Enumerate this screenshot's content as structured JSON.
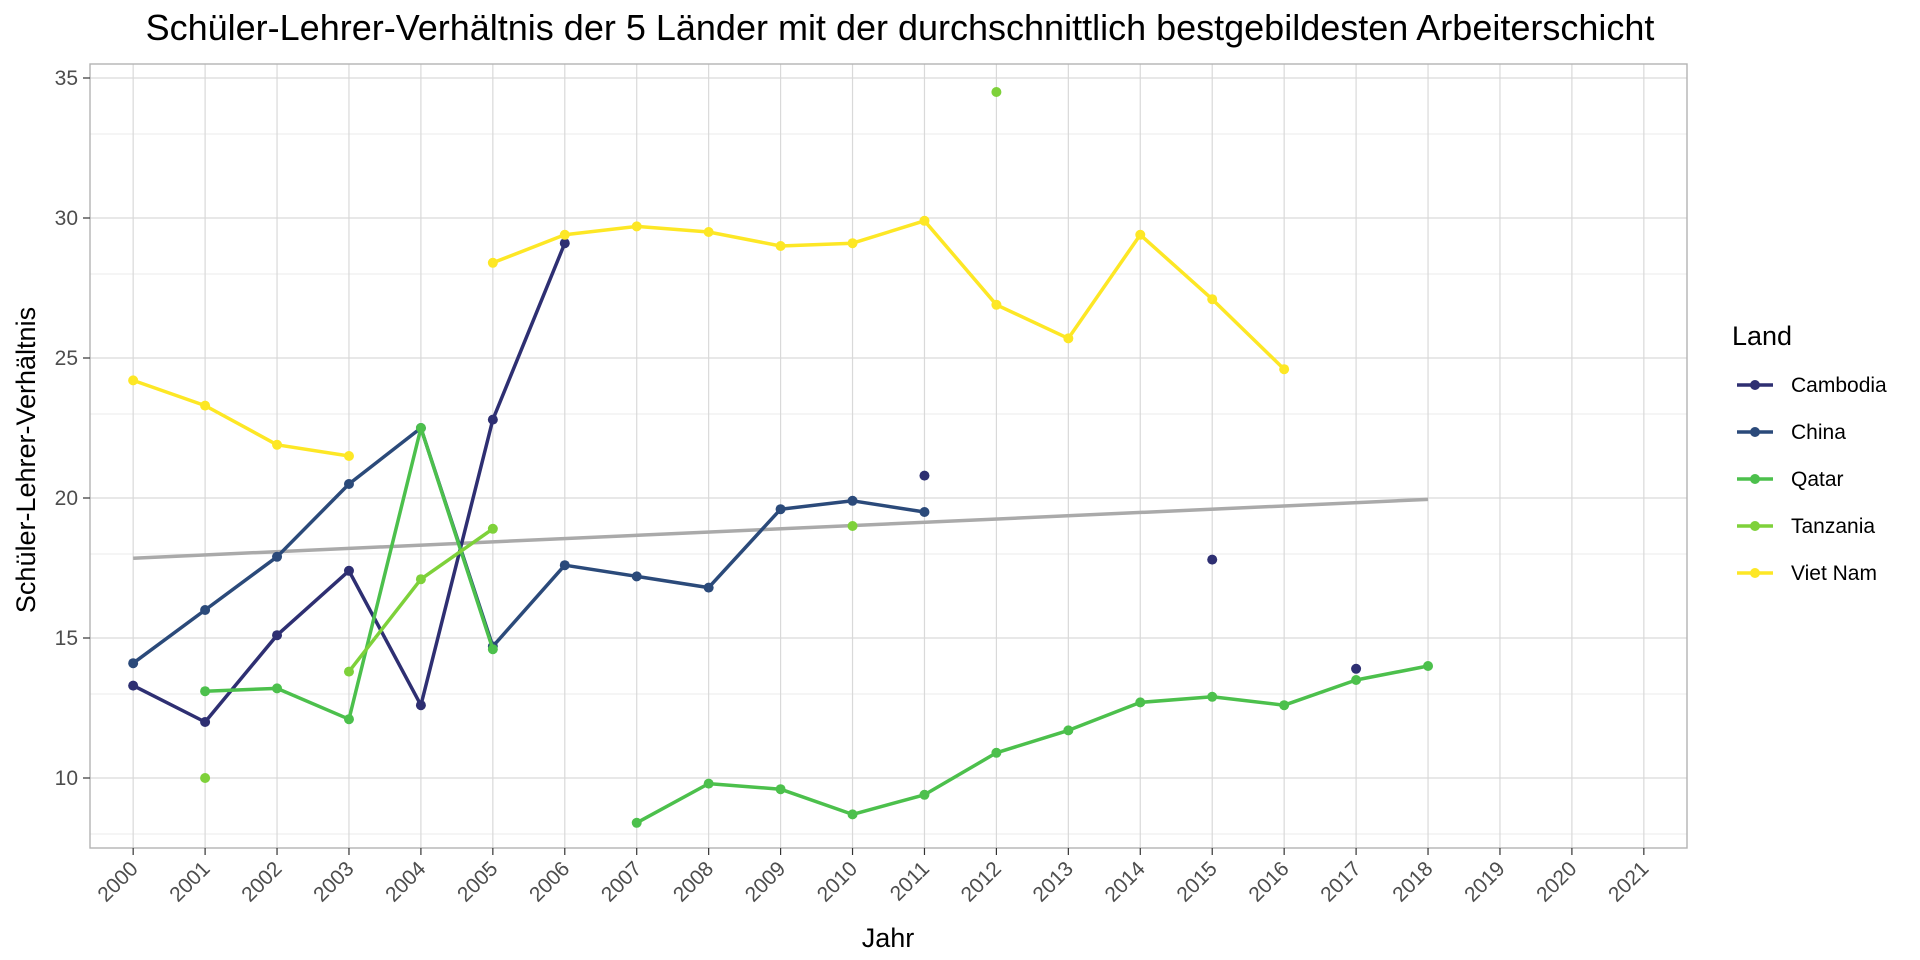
{
  "chart_data": {
    "type": "line",
    "title": "Schüler-Lehrer-Verhältnis der 5 Länder mit der durchschnittlich bestgebildesten Arbeiterschicht",
    "xlabel": "Jahr",
    "ylabel": "Schüler-Lehrer-Verhältnis",
    "x_ticks": [
      "2000",
      "2001",
      "2002",
      "2003",
      "2004",
      "2005",
      "2006",
      "2007",
      "2008",
      "2009",
      "2010",
      "2011",
      "2012",
      "2013",
      "2014",
      "2015",
      "2016",
      "2017",
      "2018",
      "2019",
      "2020",
      "2021"
    ],
    "y_ticks": [
      "10",
      "15",
      "20",
      "25",
      "30",
      "35"
    ],
    "xlim": [
      1999.4,
      2021.6
    ],
    "ylim": [
      7.5,
      35.5
    ],
    "grid": true,
    "legend": {
      "title": "Land",
      "position": "right"
    },
    "series": [
      {
        "name": "Cambodia",
        "color": "#2e2f72",
        "points": [
          [
            2000,
            13.3
          ],
          [
            2001,
            12.0
          ],
          [
            2002,
            15.1
          ],
          [
            2003,
            17.4
          ],
          [
            2004,
            12.6
          ],
          [
            2005,
            22.8
          ],
          [
            2006,
            29.1
          ],
          [
            2011,
            20.8
          ],
          [
            2015,
            17.8
          ],
          [
            2017,
            13.9
          ]
        ]
      },
      {
        "name": "China",
        "color": "#2b4a7a",
        "points": [
          [
            2000,
            14.1
          ],
          [
            2001,
            16.0
          ],
          [
            2002,
            17.9
          ],
          [
            2003,
            20.5
          ],
          [
            2004,
            22.5
          ],
          [
            2005,
            14.7
          ],
          [
            2006,
            17.6
          ],
          [
            2007,
            17.2
          ],
          [
            2008,
            16.8
          ],
          [
            2009,
            19.6
          ],
          [
            2010,
            19.9
          ],
          [
            2011,
            19.5
          ]
        ]
      },
      {
        "name": "Qatar",
        "color": "#4cc04c",
        "points": [
          [
            2001,
            13.1
          ],
          [
            2002,
            13.2
          ],
          [
            2003,
            12.1
          ],
          [
            2004,
            22.5
          ],
          [
            2005,
            14.6
          ],
          [
            2007,
            8.4
          ],
          [
            2008,
            9.8
          ],
          [
            2009,
            9.6
          ],
          [
            2010,
            8.7
          ],
          [
            2011,
            9.4
          ],
          [
            2012,
            10.9
          ],
          [
            2013,
            11.7
          ],
          [
            2014,
            12.7
          ],
          [
            2015,
            12.9
          ],
          [
            2016,
            12.6
          ],
          [
            2017,
            13.5
          ],
          [
            2018,
            14.0
          ]
        ]
      },
      {
        "name": "Tanzania",
        "color": "#7ed13a",
        "points": [
          [
            2001,
            10.0
          ],
          [
            2003,
            13.8
          ],
          [
            2004,
            17.1
          ],
          [
            2005,
            18.9
          ],
          [
            2010,
            19.0
          ],
          [
            2012,
            34.5
          ]
        ]
      },
      {
        "name": "Viet Nam",
        "color": "#fde725",
        "points": [
          [
            2000,
            24.2
          ],
          [
            2001,
            23.3
          ],
          [
            2002,
            21.9
          ],
          [
            2003,
            21.5
          ],
          [
            2005,
            28.4
          ],
          [
            2006,
            29.4
          ],
          [
            2007,
            29.7
          ],
          [
            2008,
            29.5
          ],
          [
            2009,
            29.0
          ],
          [
            2010,
            29.1
          ],
          [
            2011,
            29.9
          ],
          [
            2012,
            26.9
          ],
          [
            2013,
            25.7
          ],
          [
            2014,
            29.4
          ],
          [
            2015,
            27.1
          ],
          [
            2016,
            24.6
          ]
        ]
      }
    ],
    "trendline": {
      "color": "#aaaaaa",
      "from": [
        2000,
        17.85
      ],
      "to": [
        2018,
        19.95
      ]
    }
  }
}
